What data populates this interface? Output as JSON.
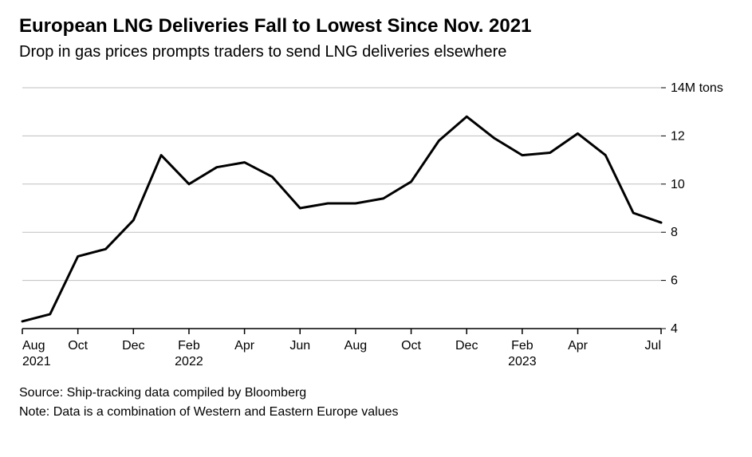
{
  "title": "European LNG Deliveries Fall to Lowest Since Nov. 2021",
  "subtitle": "Drop in gas prices prompts traders to send LNG deliveries elsewhere",
  "source_line": "Source: Ship-tracking data compiled by Bloomberg",
  "note_line": "Note: Data is a combination of Western and Eastern Europe values",
  "chart": {
    "type": "line",
    "background_color": "#ffffff",
    "series_color": "#000000",
    "line_width": 3,
    "axis_color": "#000000",
    "tick_color": "#000000",
    "gridline_color": "#bfbfbf",
    "gridline_width": 1,
    "label_fontsize": 16,
    "label_color": "#000000",
    "y_unit_label": "14M tons",
    "y_axis": {
      "min": 4,
      "max": 14,
      "ticks": [
        4,
        6,
        8,
        10,
        12,
        14
      ],
      "labels": [
        "4",
        "6",
        "8",
        "10",
        "12",
        "14M tons"
      ],
      "side": "right"
    },
    "x_axis": {
      "tick_indices": [
        0,
        2,
        4,
        6,
        8,
        10,
        12,
        14,
        16,
        18,
        20,
        23
      ],
      "tick_labels_line1": [
        "Aug",
        "Oct",
        "Dec",
        "Feb",
        "Apr",
        "Jun",
        "Aug",
        "Oct",
        "Dec",
        "Feb",
        "Apr",
        "Jul"
      ],
      "tick_labels_line2": [
        "2021",
        "",
        "",
        "2022",
        "",
        "",
        "",
        "",
        "",
        "2023",
        "",
        ""
      ]
    },
    "n_points": 24,
    "values": [
      4.3,
      4.6,
      7.0,
      7.3,
      8.5,
      11.2,
      10.0,
      10.7,
      10.9,
      10.3,
      9.0,
      9.2,
      9.2,
      9.4,
      10.1,
      11.8,
      12.8,
      11.9,
      11.2,
      11.3,
      12.1,
      11.2,
      8.8,
      8.4
    ]
  }
}
